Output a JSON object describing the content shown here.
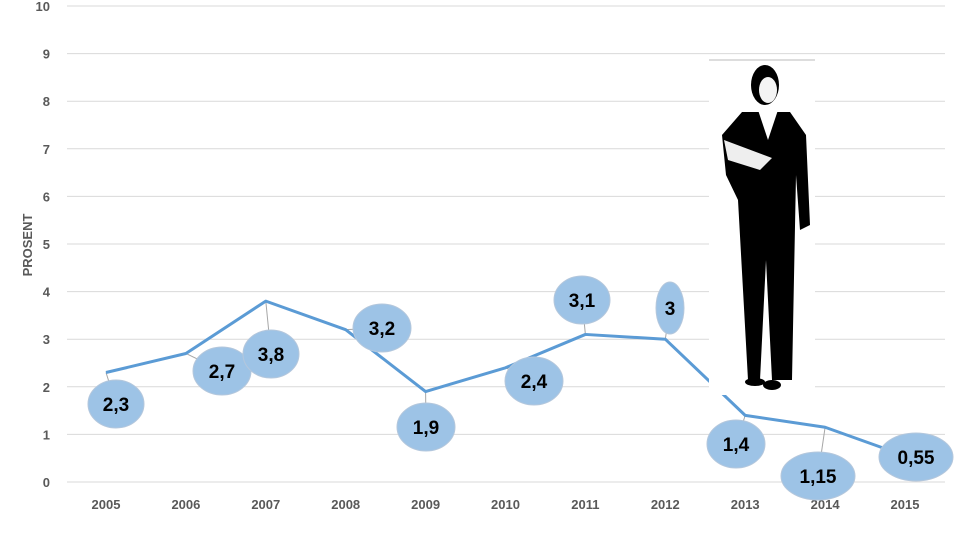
{
  "chart_data": {
    "type": "line",
    "title": "",
    "xlabel": "",
    "ylabel": "PROSENT",
    "categories": [
      "2005",
      "2006",
      "2007",
      "2008",
      "2009",
      "2010",
      "2011",
      "2012",
      "2013",
      "2014",
      "2015"
    ],
    "series": [
      {
        "name": "Prosent",
        "values": [
          2.3,
          2.7,
          3.8,
          3.2,
          1.9,
          2.4,
          3.1,
          3.0,
          1.4,
          1.15,
          0.55
        ],
        "labels": [
          "2,3",
          "2,7",
          "3,8",
          "3,2",
          "1,9",
          "2,4",
          "3,1",
          "3",
          "1,4",
          "1,15",
          "0,55"
        ]
      }
    ],
    "ylim": [
      0,
      10
    ],
    "yticks": [
      "0",
      "1",
      "2",
      "3",
      "4",
      "5",
      "6",
      "7",
      "8",
      "9",
      "10"
    ],
    "grid": true,
    "legend": "none",
    "colors": {
      "line": "#5b9bd5",
      "bubble": "#9dc3e6",
      "grid": "#d9d9d9"
    }
  }
}
